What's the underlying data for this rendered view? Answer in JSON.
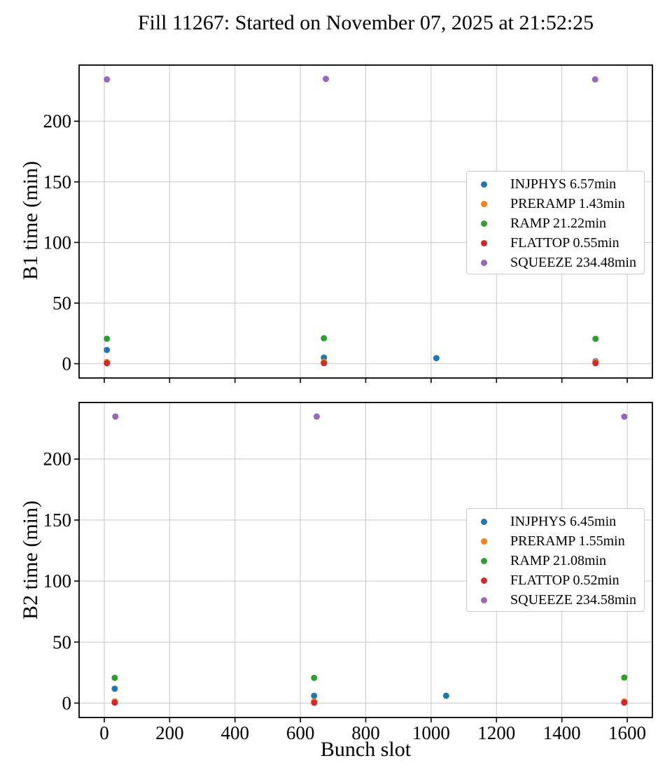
{
  "title": "Fill 11267: Started on November 07, 2025 at 21:52:25",
  "xlabel": "Bunch slot",
  "chart_data": [
    {
      "type": "scatter",
      "subplot": "top",
      "ylabel": "B1 time (min)",
      "xlim": [
        -77,
        1677
      ],
      "ylim": [
        -11.8,
        246.3
      ],
      "xticks": [
        0,
        200,
        400,
        600,
        800,
        1000,
        1200,
        1400,
        1600
      ],
      "yticks": [
        0,
        50,
        100,
        150,
        200
      ],
      "grid": true,
      "legend_position": "center right",
      "series": [
        {
          "name": "INJPHYS",
          "label": "INJPHYS 6.57min",
          "color": "#1f77b4",
          "points": [
            [
              8,
              11.3
            ],
            [
              672,
              5.0
            ],
            [
              1016,
              4.6
            ],
            [
              1503,
              2.0
            ]
          ]
        },
        {
          "name": "PRERAMP",
          "label": "PRERAMP 1.43min",
          "color": "#ff7f0e",
          "points": [
            [
              8,
              1.4
            ],
            [
              672,
              1.4
            ],
            [
              1503,
              1.4
            ]
          ]
        },
        {
          "name": "RAMP",
          "label": "RAMP 21.22min",
          "color": "#2ca02c",
          "points": [
            [
              8,
              20.6
            ],
            [
              672,
              21.0
            ],
            [
              1503,
              20.5
            ]
          ]
        },
        {
          "name": "FLATTOP",
          "label": "FLATTOP 0.55min",
          "color": "#d62728",
          "points": [
            [
              8,
              0.4
            ],
            [
              672,
              0.4
            ],
            [
              1503,
              0.4
            ]
          ]
        },
        {
          "name": "SQUEEZE",
          "label": "SQUEEZE 234.48min",
          "color": "#9467bd",
          "points": [
            [
              8,
              234.5
            ],
            [
              678,
              234.9
            ],
            [
              1502,
              234.5
            ]
          ]
        }
      ]
    },
    {
      "type": "scatter",
      "subplot": "bottom",
      "ylabel": "B2 time (min)",
      "xlim": [
        -77,
        1677
      ],
      "ylim": [
        -11.8,
        246.3
      ],
      "xticks": [
        0,
        200,
        400,
        600,
        800,
        1000,
        1200,
        1400,
        1600
      ],
      "yticks": [
        0,
        50,
        100,
        150,
        200
      ],
      "grid": true,
      "legend_position": "center right",
      "series": [
        {
          "name": "INJPHYS",
          "label": "INJPHYS 6.45min",
          "color": "#1f77b4",
          "points": [
            [
              32,
              11.8
            ],
            [
              642,
              6.0
            ],
            [
              1046,
              6.0
            ],
            [
              1591,
              0.8
            ]
          ]
        },
        {
          "name": "PRERAMP",
          "label": "PRERAMP 1.55min",
          "color": "#ff7f0e",
          "points": [
            [
              32,
              1.4
            ],
            [
              642,
              1.4
            ],
            [
              1591,
              1.4
            ]
          ]
        },
        {
          "name": "RAMP",
          "label": "RAMP 21.08min",
          "color": "#2ca02c",
          "points": [
            [
              32,
              20.7
            ],
            [
              642,
              20.7
            ],
            [
              1591,
              20.9
            ]
          ]
        },
        {
          "name": "FLATTOP",
          "label": "FLATTOP 0.52min",
          "color": "#d62728",
          "points": [
            [
              32,
              0.4
            ],
            [
              642,
              0.3
            ],
            [
              1591,
              0.4
            ]
          ]
        },
        {
          "name": "SQUEEZE",
          "label": "SQUEEZE 234.58min",
          "color": "#9467bd",
          "points": [
            [
              34,
              234.8
            ],
            [
              650,
              234.8
            ],
            [
              1591,
              234.7
            ]
          ]
        }
      ]
    }
  ]
}
